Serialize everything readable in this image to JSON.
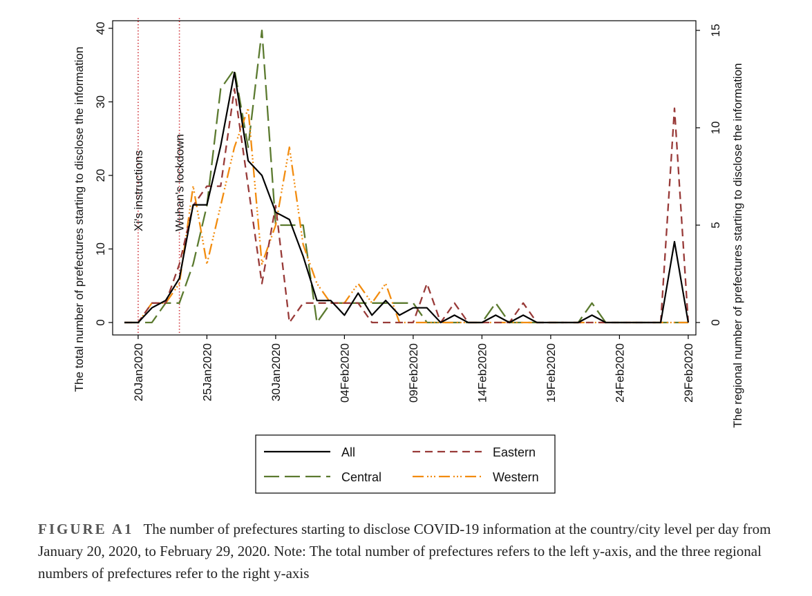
{
  "chart_data": {
    "type": "line",
    "x_tick_labels": [
      "20Jan2020",
      "25Jan2020",
      "30Jan2020",
      "04Feb2020",
      "09Feb2020",
      "14Feb2020",
      "19Feb2020",
      "24Feb2020",
      "29Feb2020"
    ],
    "x_range": [
      "2020-01-19",
      "2020-02-29"
    ],
    "ylabel_left": "The total number of prefectures starting to disclose the information",
    "ylabel_right": "The regional number of prefectures starting to disclose the information",
    "ylim_left": [
      0,
      40
    ],
    "ylim_right": [
      0,
      15
    ],
    "yticks_left": [
      "0",
      "10",
      "20",
      "30",
      "40"
    ],
    "yticks_right": [
      "0",
      "5",
      "10",
      "15"
    ],
    "annotations": [
      {
        "label": "Xi's instructions",
        "date": "2020-01-20"
      },
      {
        "label": "Wuhan's lockdown",
        "date": "2020-01-23"
      }
    ],
    "legend": {
      "position": "bottom",
      "entries": [
        "All",
        "Eastern",
        "Central",
        "Western"
      ]
    },
    "dates": [
      "2020-01-19",
      "2020-01-20",
      "2020-01-21",
      "2020-01-22",
      "2020-01-23",
      "2020-01-24",
      "2020-01-25",
      "2020-01-26",
      "2020-01-27",
      "2020-01-28",
      "2020-01-29",
      "2020-01-30",
      "2020-01-31",
      "2020-02-01",
      "2020-02-02",
      "2020-02-03",
      "2020-02-04",
      "2020-02-05",
      "2020-02-06",
      "2020-02-07",
      "2020-02-08",
      "2020-02-09",
      "2020-02-10",
      "2020-02-11",
      "2020-02-12",
      "2020-02-13",
      "2020-02-14",
      "2020-02-15",
      "2020-02-16",
      "2020-02-17",
      "2020-02-18",
      "2020-02-19",
      "2020-02-20",
      "2020-02-21",
      "2020-02-22",
      "2020-02-23",
      "2020-02-24",
      "2020-02-25",
      "2020-02-26",
      "2020-02-27",
      "2020-02-28",
      "2020-02-29"
    ],
    "series": [
      {
        "name": "All",
        "axis": "left",
        "color": "#000000",
        "dash": "solid",
        "values": [
          0,
          0,
          2,
          3,
          6,
          16,
          16,
          24,
          34,
          22,
          20,
          15,
          14,
          9,
          3,
          3,
          1,
          4,
          1,
          3,
          1,
          2,
          2,
          0,
          1,
          0,
          0,
          1,
          0,
          1,
          0,
          0,
          0,
          0,
          1,
          0,
          0,
          0,
          0,
          0,
          11,
          0
        ]
      },
      {
        "name": "Eastern",
        "axis": "right",
        "color": "#983a38",
        "dash": "dashed",
        "values": [
          0,
          0,
          1,
          1,
          3,
          6,
          7,
          7,
          12,
          7,
          2,
          6,
          0,
          1,
          1,
          1,
          1,
          1,
          0,
          0,
          0,
          0,
          2,
          0,
          1,
          0,
          0,
          0,
          0,
          1,
          0,
          0,
          0,
          0,
          0,
          0,
          0,
          0,
          0,
          0,
          11,
          0
        ]
      },
      {
        "name": "Central",
        "axis": "right",
        "color": "#5b7a2f",
        "dash": "longdash",
        "values": [
          0,
          0,
          0,
          1,
          1,
          3,
          6,
          12,
          13,
          9,
          15,
          5,
          5,
          5,
          0,
          1,
          1,
          1,
          1,
          1,
          1,
          1,
          0,
          0,
          0,
          0,
          0,
          1,
          0,
          0,
          0,
          0,
          0,
          0,
          1,
          0,
          0,
          0,
          0,
          0,
          0,
          0
        ]
      },
      {
        "name": "Western",
        "axis": "right",
        "color": "#f28c0f",
        "dash": "dashdot",
        "values": [
          0,
          0,
          1,
          1,
          2,
          7,
          3,
          6,
          9,
          11,
          3,
          5,
          9,
          4,
          2,
          1,
          1,
          2,
          1,
          2,
          0,
          0,
          0,
          0,
          0,
          0,
          0,
          0,
          0,
          0,
          0,
          0,
          0,
          0,
          0,
          0,
          0,
          0,
          0,
          0,
          0,
          0
        ]
      }
    ]
  },
  "caption": {
    "label": "FIGURE A1",
    "text": "The number of prefectures starting to disclose COVID-19 information at the country/city level per day from January 20, 2020, to February 29, 2020.  Note: The total number of prefectures refers to the left y-axis, and the three regional numbers of prefectures refer to the right y-axis"
  }
}
